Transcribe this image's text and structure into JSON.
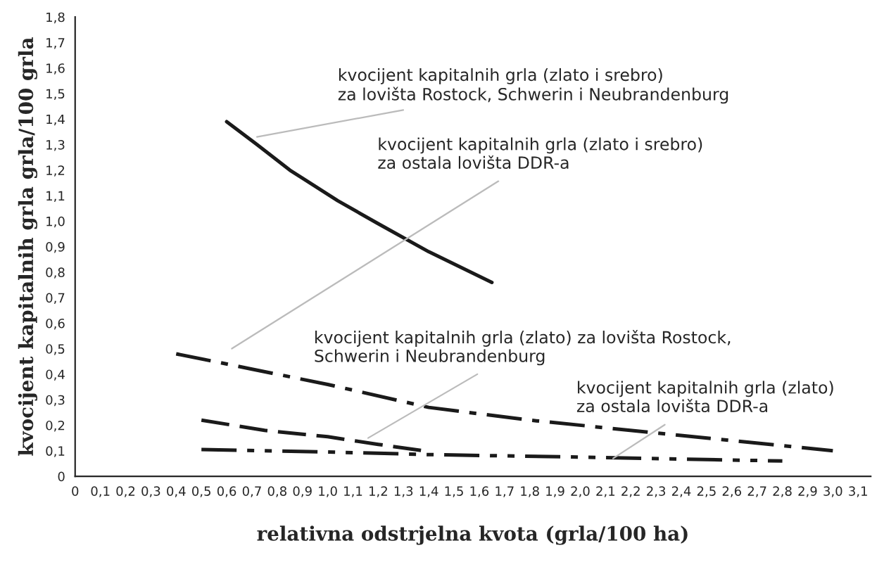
{
  "chart_data": {
    "type": "line",
    "xlabel": "relativna odstrjelna kvota (grla/100 ha)",
    "ylabel": "kvocijent kapitalnih grla grla/100 grla",
    "xlim": [
      0,
      3.15
    ],
    "ylim": [
      0,
      1.8
    ],
    "xticks": [
      0,
      {
        "value": 0.1,
        "label": "0,1"
      },
      {
        "value": 0.2,
        "label": "0,2"
      },
      {
        "value": 0.3,
        "label": "0,3"
      },
      {
        "value": 0.4,
        "label": "0,4"
      },
      {
        "value": 0.5,
        "label": "0,5"
      },
      {
        "value": 0.6,
        "label": "0,6"
      },
      {
        "value": 0.7,
        "label": "0,7"
      },
      {
        "value": 0.8,
        "label": "0,8"
      },
      {
        "value": 0.9,
        "label": "0,9"
      },
      {
        "value": 1.0,
        "label": "1,0"
      },
      {
        "value": 1.1,
        "label": "1,1"
      },
      {
        "value": 1.2,
        "label": "1,2"
      },
      {
        "value": 1.3,
        "label": "1,3"
      },
      {
        "value": 1.4,
        "label": "1,4"
      },
      {
        "value": 1.5,
        "label": "1,5"
      },
      {
        "value": 1.6,
        "label": "1,6"
      },
      {
        "value": 1.7,
        "label": "1,7"
      },
      {
        "value": 1.8,
        "label": "1,8"
      },
      {
        "value": 1.9,
        "label": "1,9"
      },
      {
        "value": 2.0,
        "label": "2,0"
      },
      {
        "value": 2.1,
        "label": "2,1"
      },
      {
        "value": 2.2,
        "label": "2,2"
      },
      {
        "value": 2.3,
        "label": "2,3"
      },
      {
        "value": 2.4,
        "label": "2,4"
      },
      {
        "value": 2.5,
        "label": "2,5"
      },
      {
        "value": 2.6,
        "label": "2,6"
      },
      {
        "value": 2.7,
        "label": "2,7"
      },
      {
        "value": 2.8,
        "label": "2,8"
      },
      {
        "value": 2.9,
        "label": "2,9"
      },
      {
        "value": 3.0,
        "label": "3,0"
      },
      {
        "value": 3.1,
        "label": "3,1"
      }
    ],
    "yticks": [
      0,
      {
        "value": 0.1,
        "label": "0,1"
      },
      {
        "value": 0.2,
        "label": "0,2"
      },
      {
        "value": 0.3,
        "label": "0,3"
      },
      {
        "value": 0.4,
        "label": "0,4"
      },
      {
        "value": 0.5,
        "label": "0,5"
      },
      {
        "value": 0.6,
        "label": "0,6"
      },
      {
        "value": 0.7,
        "label": "0,7"
      },
      {
        "value": 0.8,
        "label": "0,8"
      },
      {
        "value": 0.9,
        "label": "0,9"
      },
      {
        "value": 1.0,
        "label": "1,0"
      },
      {
        "value": 1.1,
        "label": "1,1"
      },
      {
        "value": 1.2,
        "label": "1,2"
      },
      {
        "value": 1.3,
        "label": "1,3"
      },
      {
        "value": 1.4,
        "label": "1,4"
      },
      {
        "value": 1.5,
        "label": "1,5"
      },
      {
        "value": 1.6,
        "label": "1,6"
      },
      {
        "value": 1.7,
        "label": "1,7"
      },
      {
        "value": 1.8,
        "label": "1,8"
      }
    ],
    "grid": false,
    "legend": false,
    "marker": "none",
    "series": [
      {
        "color": "#1a1a1a",
        "line_style": "solid",
        "x": [
          0.6,
          0.72,
          0.85,
          1.04,
          1.2,
          1.4,
          1.65
        ],
        "values": [
          1.39,
          1.3,
          1.2,
          1.08,
          0.99,
          0.88,
          0.76
        ]
      },
      {
        "color": "#1a1a1a",
        "line_style": "dashdot",
        "x": [
          0.4,
          0.7,
          1.0,
          1.4,
          1.8,
          2.3,
          2.6,
          3.0
        ],
        "values": [
          0.48,
          0.42,
          0.36,
          0.27,
          0.22,
          0.17,
          0.14,
          0.1
        ]
      },
      {
        "color": "#1a1a1a",
        "line_style": "dashed",
        "x": [
          0.5,
          0.75,
          1.0,
          1.2,
          1.38
        ],
        "values": [
          0.22,
          0.18,
          0.155,
          0.125,
          0.1
        ]
      },
      {
        "color": "#1a1a1a",
        "line_style": "dashdotdot",
        "x": [
          0.5,
          1.0,
          1.4,
          2.0,
          2.8
        ],
        "values": [
          0.105,
          0.095,
          0.085,
          0.075,
          0.06
        ]
      }
    ],
    "annotations": [
      {
        "text": "kvocijent kapitalnih grla (zlato i srebro)\nza lovišta Rostock, Schwerin i Neubrandenburg",
        "x": 0.72,
        "y": 1.33
      },
      "kvocijent kapitalnih grla (zlato i srebro)\nza ostala lovišta DDR-a",
      {
        "text": "kvocijent kapitalnih grla (zlato) za lovišta Rostock,\nSchwerin i Neubrandenburg",
        "x": 1.16,
        "y": 0.15
      },
      {
        "text": "kvocijent kapitalnih grla (zlato)\nza ostala lovišta DDR-a",
        "x": 2.13,
        "y": 0.07
      }
    ]
  }
}
